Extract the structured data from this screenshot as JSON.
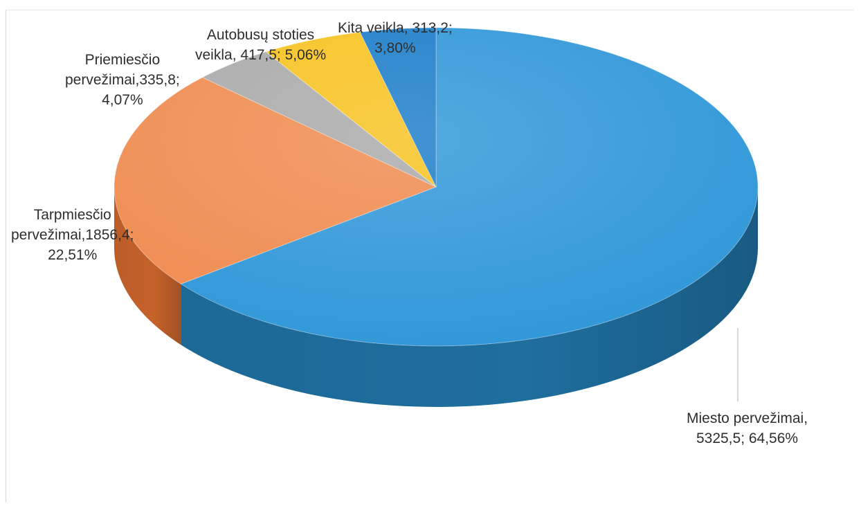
{
  "chart_data": {
    "type": "pie",
    "style": "3d",
    "start_angle_deg": 0,
    "direction": "clockwise",
    "slices": [
      {
        "name": "Miesto pervežimai",
        "value": 5325.5,
        "percent": 64.56,
        "value_label": "5325,5",
        "percent_label": "64,56%",
        "label_lines": [
          "Miesto pervežimai,",
          "5325,5; 64,56%"
        ],
        "color": "#2E96D8",
        "side_color": "#1E6E9E"
      },
      {
        "name": "Tarpmiesčio pervežimai",
        "value": 1856.4,
        "percent": 22.51,
        "value_label": "1856,4",
        "percent_label": "22,51%",
        "label_lines": [
          "Tarpmiesčio",
          "pervežimai,1856,4;",
          "22,51%"
        ],
        "color": "#EF8A4E",
        "side_color": "#C5622A"
      },
      {
        "name": "Priemiesčio pervežimai",
        "value": 335.8,
        "percent": 4.07,
        "value_label": "335,8",
        "percent_label": "4,07%",
        "label_lines": [
          "Priemiesčio",
          "pervežimai,335,8;",
          "4,07%"
        ],
        "color": "#A9A9A9",
        "side_color": "#7E7E7E"
      },
      {
        "name": "Autobusų stoties veikla",
        "value": 417.5,
        "percent": 5.06,
        "value_label": "417,5",
        "percent_label": "5,06%",
        "label_lines": [
          "Autobusų stoties",
          "veikla, 417,5; 5,06%"
        ],
        "color": "#F7C21E",
        "side_color": "#C99A12"
      },
      {
        "name": "Kita veikla",
        "value": 313.2,
        "percent": 3.8,
        "value_label": "313,2",
        "percent_label": "3,80%",
        "label_lines": [
          "Kita veikla, 313,2;",
          "3,80%"
        ],
        "color": "#1A7CC8",
        "side_color": "#125A93"
      }
    ]
  }
}
